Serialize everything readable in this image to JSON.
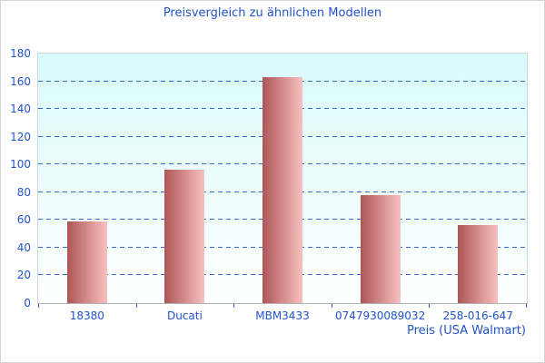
{
  "chart_data": {
    "type": "bar",
    "title": "Preisvergleich zu ähnlichen Modellen",
    "categories": [
      "18380",
      "Ducati",
      "MBM3433",
      "0747930089032",
      "258-016-647"
    ],
    "values": [
      59,
      96,
      163,
      78,
      56
    ],
    "xlabel": "Preis (USA Walmart)",
    "ylabel": "",
    "ylim": [
      0,
      180
    ],
    "yticks": [
      0,
      20,
      40,
      60,
      80,
      100,
      120,
      140,
      160,
      180
    ],
    "grid": "horizontal-dashed",
    "legend": "none"
  },
  "colors": {
    "text_blue": "#2153cc",
    "gridline_blue": "#3a66cc",
    "bar_gradient_left": "#ae5656",
    "bar_gradient_right": "#f9c0c0",
    "plot_bg_top": "#d9fafb",
    "plot_bg_bottom": "#ffffff",
    "axis_line_gray": "#aab4b4",
    "outer_border_gray": "#d6d6d6"
  }
}
